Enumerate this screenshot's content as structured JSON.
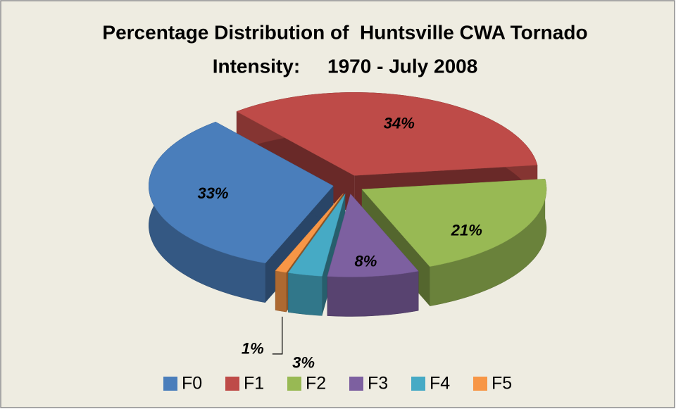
{
  "chart_data": {
    "type": "pie3d",
    "title": [
      "Percentage Distribution of  Huntsville CWA Tornado",
      "Intensity:     1970 - July 2008"
    ],
    "categories": [
      "F0",
      "F1",
      "F2",
      "F3",
      "F4",
      "F5"
    ],
    "values": [
      33,
      34,
      21,
      8,
      3,
      1
    ],
    "value_labels": [
      "33%",
      "34%",
      "21%",
      "8%",
      "3%",
      "1%"
    ],
    "colors": [
      "#4a7ebb",
      "#be4b48",
      "#98b954",
      "#7d60a0",
      "#46aac5",
      "#f79646"
    ],
    "legend": "bottom"
  }
}
